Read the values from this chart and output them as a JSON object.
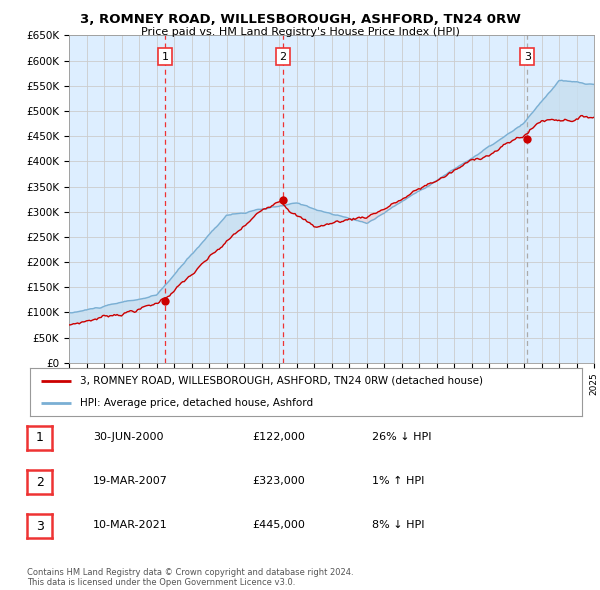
{
  "title": "3, ROMNEY ROAD, WILLESBOROUGH, ASHFORD, TN24 0RW",
  "subtitle": "Price paid vs. HM Land Registry's House Price Index (HPI)",
  "ylabel_ticks": [
    "£0",
    "£50K",
    "£100K",
    "£150K",
    "£200K",
    "£250K",
    "£300K",
    "£350K",
    "£400K",
    "£450K",
    "£500K",
    "£550K",
    "£600K",
    "£650K"
  ],
  "ytick_values": [
    0,
    50000,
    100000,
    150000,
    200000,
    250000,
    300000,
    350000,
    400000,
    450000,
    500000,
    550000,
    600000,
    650000
  ],
  "xmin": 1995,
  "xmax": 2025,
  "ymin": 0,
  "ymax": 650000,
  "sale_points": [
    {
      "year": 2000.5,
      "price": 122000,
      "label": "1"
    },
    {
      "year": 2007.22,
      "price": 323000,
      "label": "2"
    },
    {
      "year": 2021.19,
      "price": 445000,
      "label": "3"
    }
  ],
  "sale_vlines_red": [
    2000.5,
    2007.22
  ],
  "sale_vlines_gray": [
    2021.19
  ],
  "legend_line1": "3, ROMNEY ROAD, WILLESBOROUGH, ASHFORD, TN24 0RW (detached house)",
  "legend_line2": "HPI: Average price, detached house, Ashford",
  "table_rows": [
    {
      "num": "1",
      "date": "30-JUN-2000",
      "price": "£122,000",
      "hpi": "26% ↓ HPI"
    },
    {
      "num": "2",
      "date": "19-MAR-2007",
      "price": "£323,000",
      "hpi": "1% ↑ HPI"
    },
    {
      "num": "3",
      "date": "10-MAR-2021",
      "price": "£445,000",
      "hpi": "8% ↓ HPI"
    }
  ],
  "footnote": "Contains HM Land Registry data © Crown copyright and database right 2024.\nThis data is licensed under the Open Government Licence v3.0.",
  "red_color": "#cc0000",
  "blue_color": "#7aafd4",
  "vline_red_color": "#ee3333",
  "vline_gray_color": "#aaaaaa",
  "grid_color": "#cccccc",
  "bg_color": "#ffffff",
  "plot_bg": "#ddeeff",
  "fill_color": "#c8dff0"
}
